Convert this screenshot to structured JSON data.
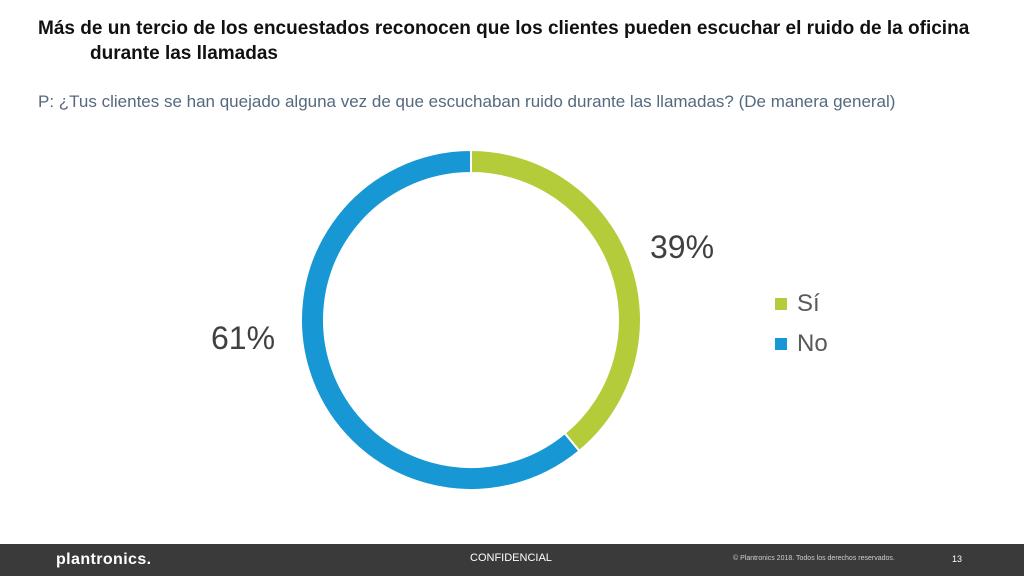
{
  "slide": {
    "title_line1": "Más de un tercio de los encuestados reconocen que los clientes pueden escuchar el ruido de la oficina",
    "title_line2": "durante las llamadas",
    "question": "P: ¿Tus clientes se han quejado alguna vez de que escuchaban ruido durante las llamadas? (De manera general)"
  },
  "chart_data": {
    "type": "pie",
    "style": "donut",
    "title": "",
    "categories": [
      "Sí",
      "No"
    ],
    "values": [
      39,
      61
    ],
    "data_labels": [
      "39%",
      "61%"
    ],
    "colors": [
      "#b5cc3a",
      "#1897d5"
    ],
    "legend": [
      "Sí",
      "No"
    ],
    "legend_position": "right"
  },
  "footer": {
    "logo": "plantronics.",
    "confidential": "CONFIDENCIAL",
    "copyright": "© Plantronics 2018. Todos los derechos reservados.",
    "page_number": "13"
  }
}
